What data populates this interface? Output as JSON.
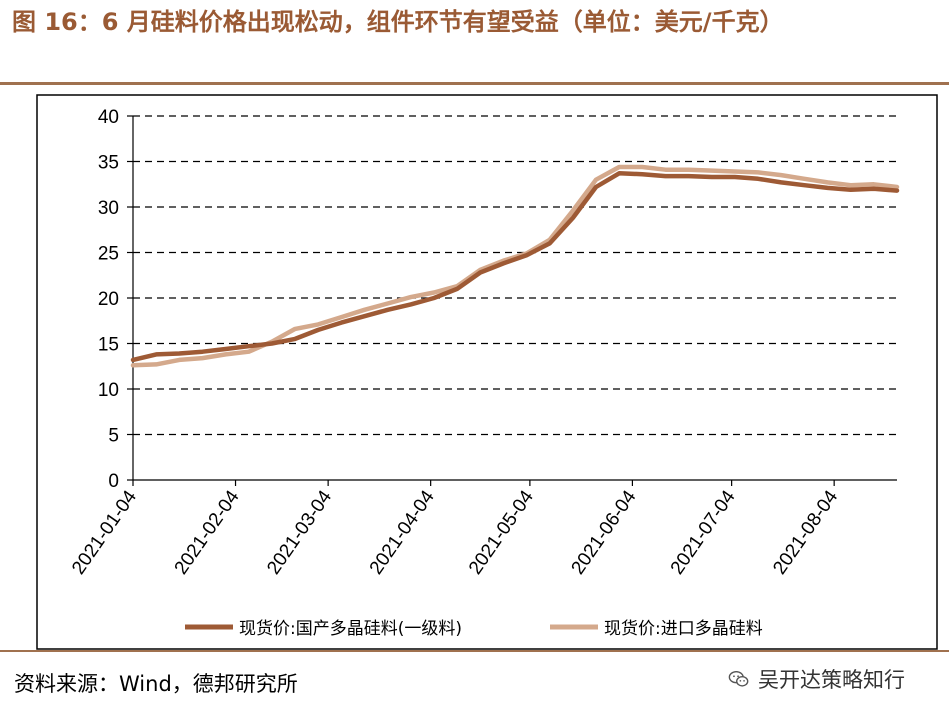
{
  "header": {
    "title": "图 16：6 月硅料价格出现松动，组件环节有望受益（单位：美元/千克）"
  },
  "footer": {
    "source": "资料来源：Wind，德邦研究所",
    "watermark": "吴开达策略知行",
    "watermark_icon": "wechat-icon"
  },
  "chart_data": {
    "type": "line",
    "title": "",
    "xlabel": "",
    "ylabel": "",
    "ylim": [
      0,
      40
    ],
    "yticks": [
      0,
      5,
      10,
      15,
      20,
      25,
      30,
      35,
      40
    ],
    "xticks": [
      "2021-01-04",
      "2021-02-04",
      "2021-03-04",
      "2021-04-04",
      "2021-05-04",
      "2021-06-04",
      "2021-07-04",
      "2021-08-04"
    ],
    "xlim": [
      "2021-01-04",
      "2021-08-23"
    ],
    "grid": "horizontal dashed",
    "legend_position": "bottom",
    "x": [
      "2021-01-04",
      "2021-01-11",
      "2021-01-18",
      "2021-01-25",
      "2021-02-01",
      "2021-02-08",
      "2021-02-15",
      "2021-02-22",
      "2021-03-01",
      "2021-03-08",
      "2021-03-15",
      "2021-03-22",
      "2021-03-29",
      "2021-04-05",
      "2021-04-12",
      "2021-04-19",
      "2021-04-26",
      "2021-05-03",
      "2021-05-10",
      "2021-05-17",
      "2021-05-24",
      "2021-05-31",
      "2021-06-07",
      "2021-06-14",
      "2021-06-21",
      "2021-06-28",
      "2021-07-05",
      "2021-07-12",
      "2021-07-19",
      "2021-07-26",
      "2021-08-02",
      "2021-08-09",
      "2021-08-16",
      "2021-08-23"
    ],
    "series": [
      {
        "name": "现货价:国产多晶硅料(一级料)",
        "color": "#9e5a35",
        "values": [
          13.2,
          13.8,
          13.9,
          14.1,
          14.4,
          14.7,
          15.0,
          15.5,
          16.5,
          17.3,
          18.0,
          18.7,
          19.3,
          20.0,
          21.0,
          22.8,
          23.8,
          24.7,
          26.0,
          28.8,
          32.2,
          33.7,
          33.6,
          33.4,
          33.4,
          33.3,
          33.3,
          33.1,
          32.7,
          32.4,
          32.1,
          31.9,
          32.0,
          31.8
        ]
      },
      {
        "name": "现货价:进口多晶硅料",
        "color": "#d4a98c",
        "values": [
          12.6,
          12.7,
          13.2,
          13.4,
          13.8,
          14.1,
          15.2,
          16.6,
          17.1,
          17.9,
          18.7,
          19.4,
          20.1,
          20.6,
          21.3,
          23.1,
          24.1,
          24.9,
          26.4,
          29.6,
          33.0,
          34.4,
          34.4,
          34.1,
          34.1,
          34.0,
          33.9,
          33.8,
          33.5,
          33.1,
          32.7,
          32.4,
          32.5,
          32.2
        ]
      }
    ]
  }
}
